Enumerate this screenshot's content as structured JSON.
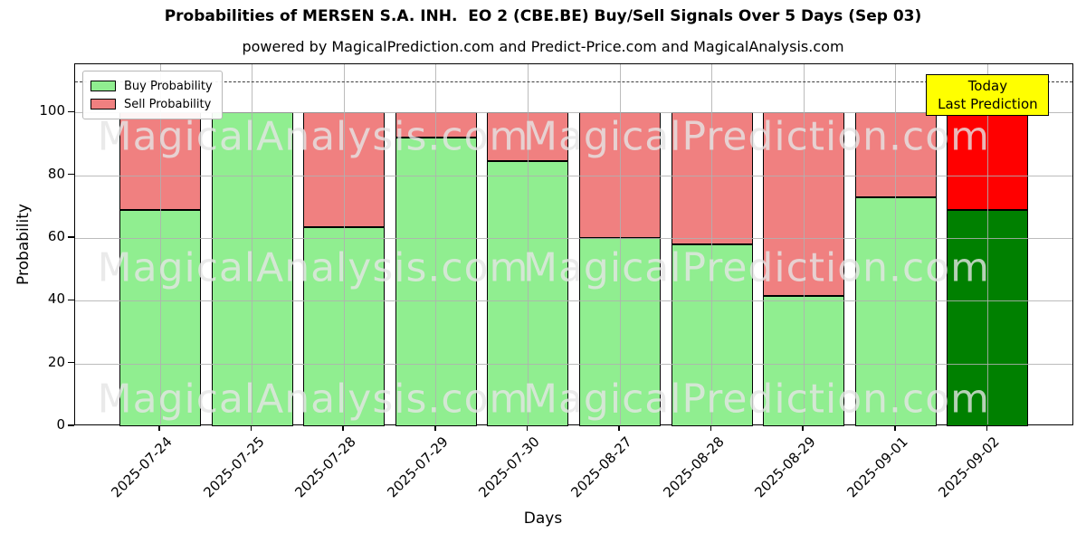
{
  "title": "Probabilities of MERSEN S.A. INH.  EO 2 (CBE.BE) Buy/Sell Signals Over 5 Days (Sep 03)",
  "subtitle": "powered by MagicalPrediction.com and Predict-Price.com and MagicalAnalysis.com",
  "legend": {
    "buy_label": "Buy Probability",
    "sell_label": "Sell Probability"
  },
  "annotation": {
    "line1": "Today",
    "line2": "Last Prediction"
  },
  "watermarks": {
    "left_text": "MagicalAnalysis.com",
    "right_text": "MagicalPrediction.com"
  },
  "colors": {
    "buy_past": "#90EE90",
    "sell_past": "#F08080",
    "buy_today": "#008000",
    "sell_today": "#FF0000",
    "annotation_bg": "#FFFF00",
    "dashed_line": "#3c3c3c",
    "grid": "#b0b0b0",
    "bar_edge": "#000000"
  },
  "chart_data": {
    "type": "bar",
    "stacked": true,
    "title": "Probabilities of MERSEN S.A. INH.  EO 2 (CBE.BE) Buy/Sell Signals Over 5 Days (Sep 03)",
    "xlabel": "Days",
    "ylabel": "Probability",
    "categories": [
      "2025-07-24",
      "2025-07-25",
      "2025-07-28",
      "2025-07-29",
      "2025-07-30",
      "2025-08-27",
      "2025-08-28",
      "2025-08-29",
      "2025-09-01",
      "2025-09-02"
    ],
    "series": [
      {
        "name": "Buy Probability",
        "color": "#90EE90",
        "today_color": "#008000",
        "values": [
          69,
          100,
          63.5,
          92,
          84.5,
          60,
          58,
          41.5,
          73,
          69
        ]
      },
      {
        "name": "Sell Probability",
        "color": "#F08080",
        "today_color": "#FF0000",
        "values": [
          31,
          0,
          36.5,
          8,
          15.5,
          40,
          42,
          58.5,
          27,
          31
        ]
      }
    ],
    "today_index": 9,
    "ylim": [
      0,
      115.4
    ],
    "yticks": [
      0,
      20,
      40,
      60,
      80,
      100
    ],
    "dashed_line_y": 110,
    "grid": true,
    "legend_position": "upper left"
  }
}
